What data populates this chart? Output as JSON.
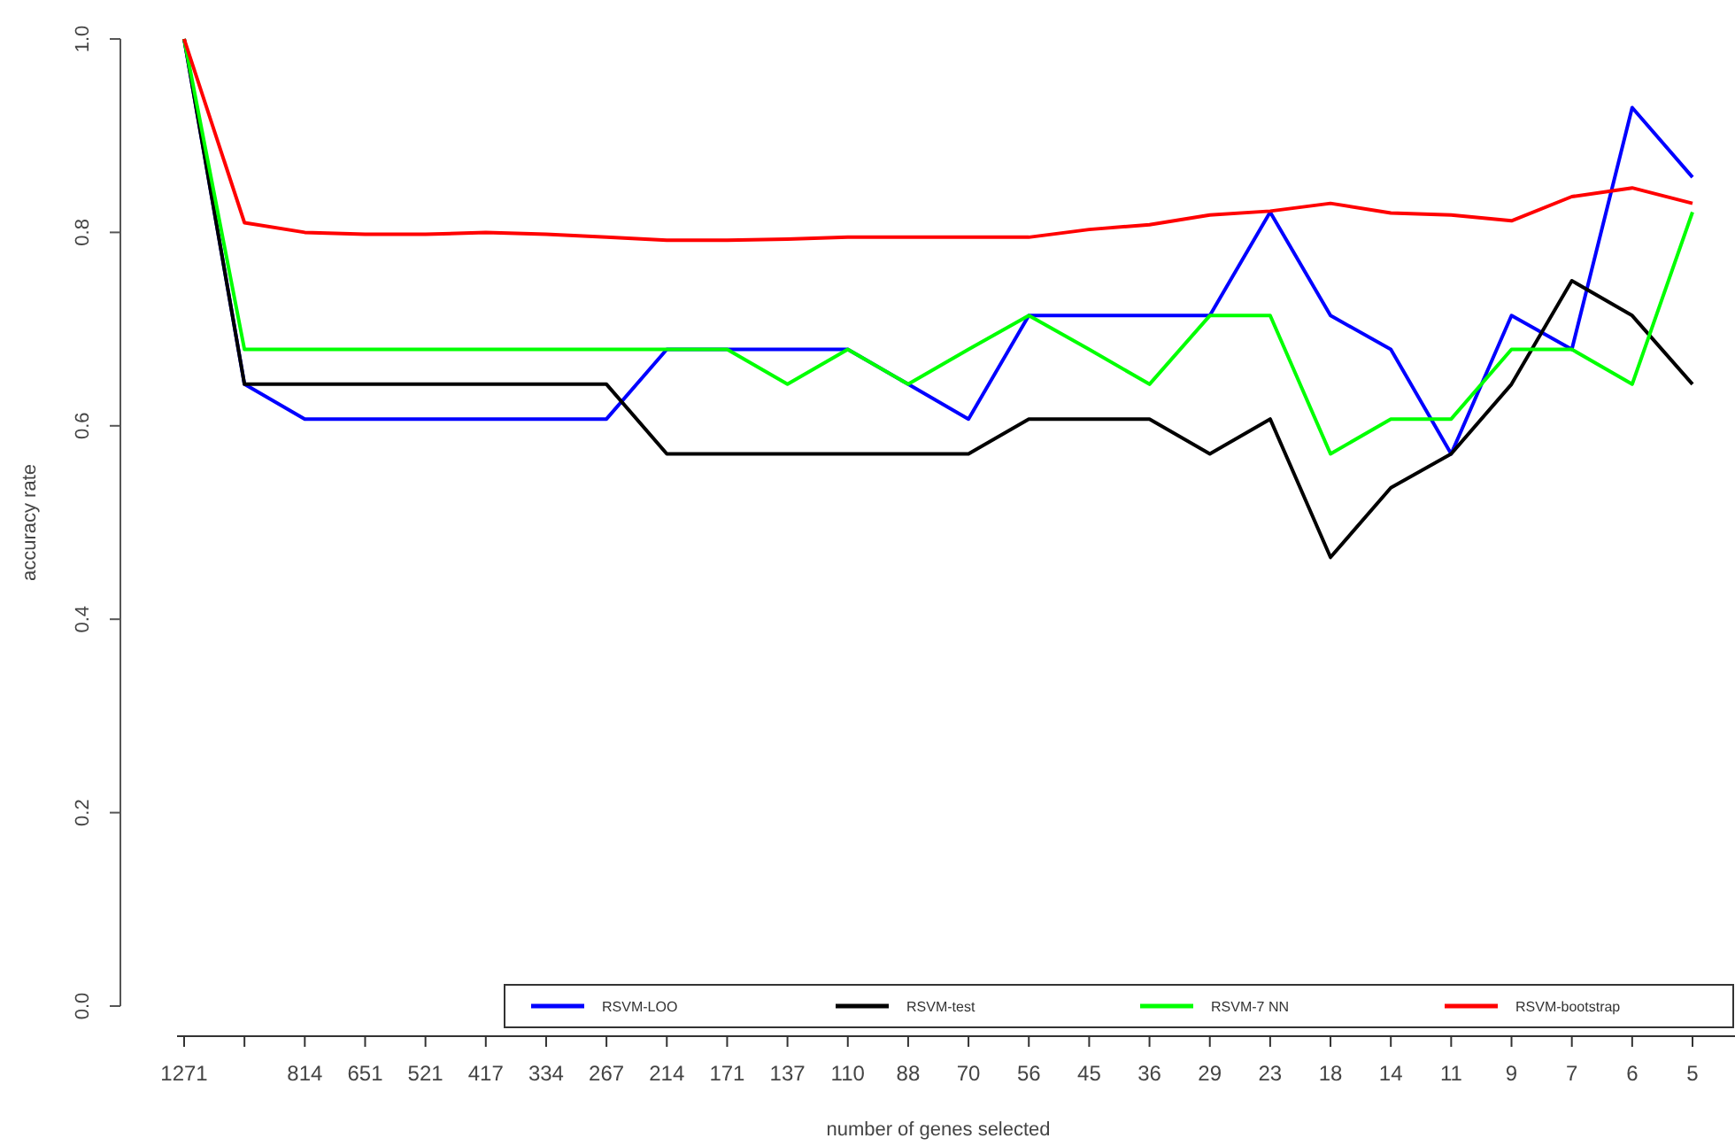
{
  "chart_data": {
    "type": "line",
    "xlabel": "number of genes selected",
    "ylabel": "accuracy rate",
    "categories": [
      "1271",
      null,
      "814",
      "651",
      "521",
      "417",
      "334",
      "267",
      "214",
      "171",
      "137",
      "110",
      "88",
      "70",
      "56",
      "45",
      "36",
      "29",
      "23",
      "18",
      "14",
      "11",
      "9",
      "7",
      "6",
      "5"
    ],
    "ylim": [
      0,
      1
    ],
    "yticks": [
      {
        "value": 0,
        "label": "0.0"
      },
      0.2,
      0.4,
      0.6,
      0.8,
      {
        "value": 1,
        "label": "1.0"
      }
    ],
    "grid": false,
    "legend": "bottom right",
    "marker": "none",
    "line_style": "solid",
    "series": [
      {
        "name": "RSVM-LOO",
        "color": "#0000ff",
        "values": [
          1.0,
          0.643,
          0.607,
          0.607,
          0.607,
          0.607,
          0.607,
          0.607,
          0.679,
          0.679,
          0.679,
          0.679,
          0.643,
          0.607,
          0.714,
          0.714,
          0.714,
          0.714,
          0.821,
          0.714,
          0.679,
          0.571,
          0.714,
          0.679,
          0.929,
          0.857
        ]
      },
      {
        "name": "RSVM-test",
        "color": "#000000",
        "values": [
          1.0,
          0.643,
          0.643,
          0.643,
          0.643,
          0.643,
          0.643,
          0.643,
          0.571,
          0.571,
          0.571,
          0.571,
          0.571,
          0.571,
          0.607,
          0.607,
          0.607,
          0.571,
          0.607,
          0.464,
          0.536,
          0.571,
          0.643,
          0.75,
          0.714,
          0.643
        ]
      },
      {
        "name": "RSVM-7 NN",
        "color": "#00ff00",
        "values": [
          1.0,
          0.679,
          0.679,
          0.679,
          0.679,
          0.679,
          0.679,
          0.679,
          0.679,
          0.679,
          0.643,
          0.679,
          0.643,
          0.679,
          0.714,
          0.679,
          0.643,
          0.714,
          0.714,
          0.571,
          0.607,
          0.607,
          0.679,
          0.679,
          0.643,
          0.821
        ]
      },
      {
        "name": "RSVM-bootstrap",
        "color": "#ff0000",
        "values": [
          1.0,
          0.81,
          0.8,
          0.798,
          0.798,
          0.8,
          0.798,
          0.795,
          0.792,
          0.792,
          0.793,
          0.795,
          0.795,
          0.795,
          0.795,
          0.803,
          0.808,
          0.818,
          0.822,
          0.83,
          0.82,
          0.818,
          0.812,
          0.837,
          0.846,
          0.83
        ]
      }
    ]
  }
}
